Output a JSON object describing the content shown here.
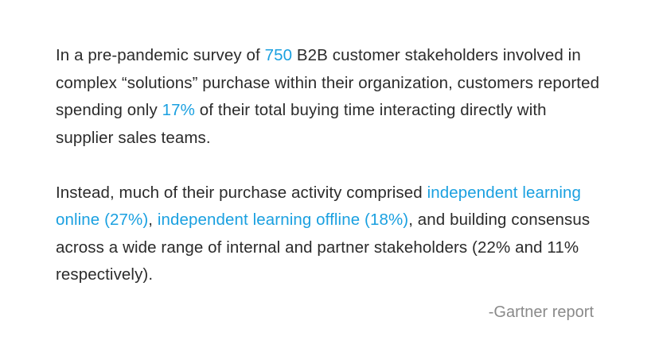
{
  "quote": {
    "p1": {
      "t1": "In a pre-pandemic survey of ",
      "h1": "750",
      "t2": " B2B customer stakeholders involved in complex “solutions” purchase within their organization, customers reported spending only ",
      "h2": "17%",
      "t3": " of their total buying time interacting directly with supplier sales teams."
    },
    "p2": {
      "t1": "Instead, much of their purchase activity comprised ",
      "h1": "independent learning online (27%)",
      "t2": ", ",
      "h2": "independent learning offline (18%)",
      "t3": ", and building consensus across a wide range of internal and partner stakeholders (22% and 11% respectively)."
    },
    "source": "-Gartner report"
  },
  "colors": {
    "text": "#2b2b2b",
    "highlight": "#1aa0e0",
    "source": "#8a8a8a",
    "background": "#ffffff"
  }
}
